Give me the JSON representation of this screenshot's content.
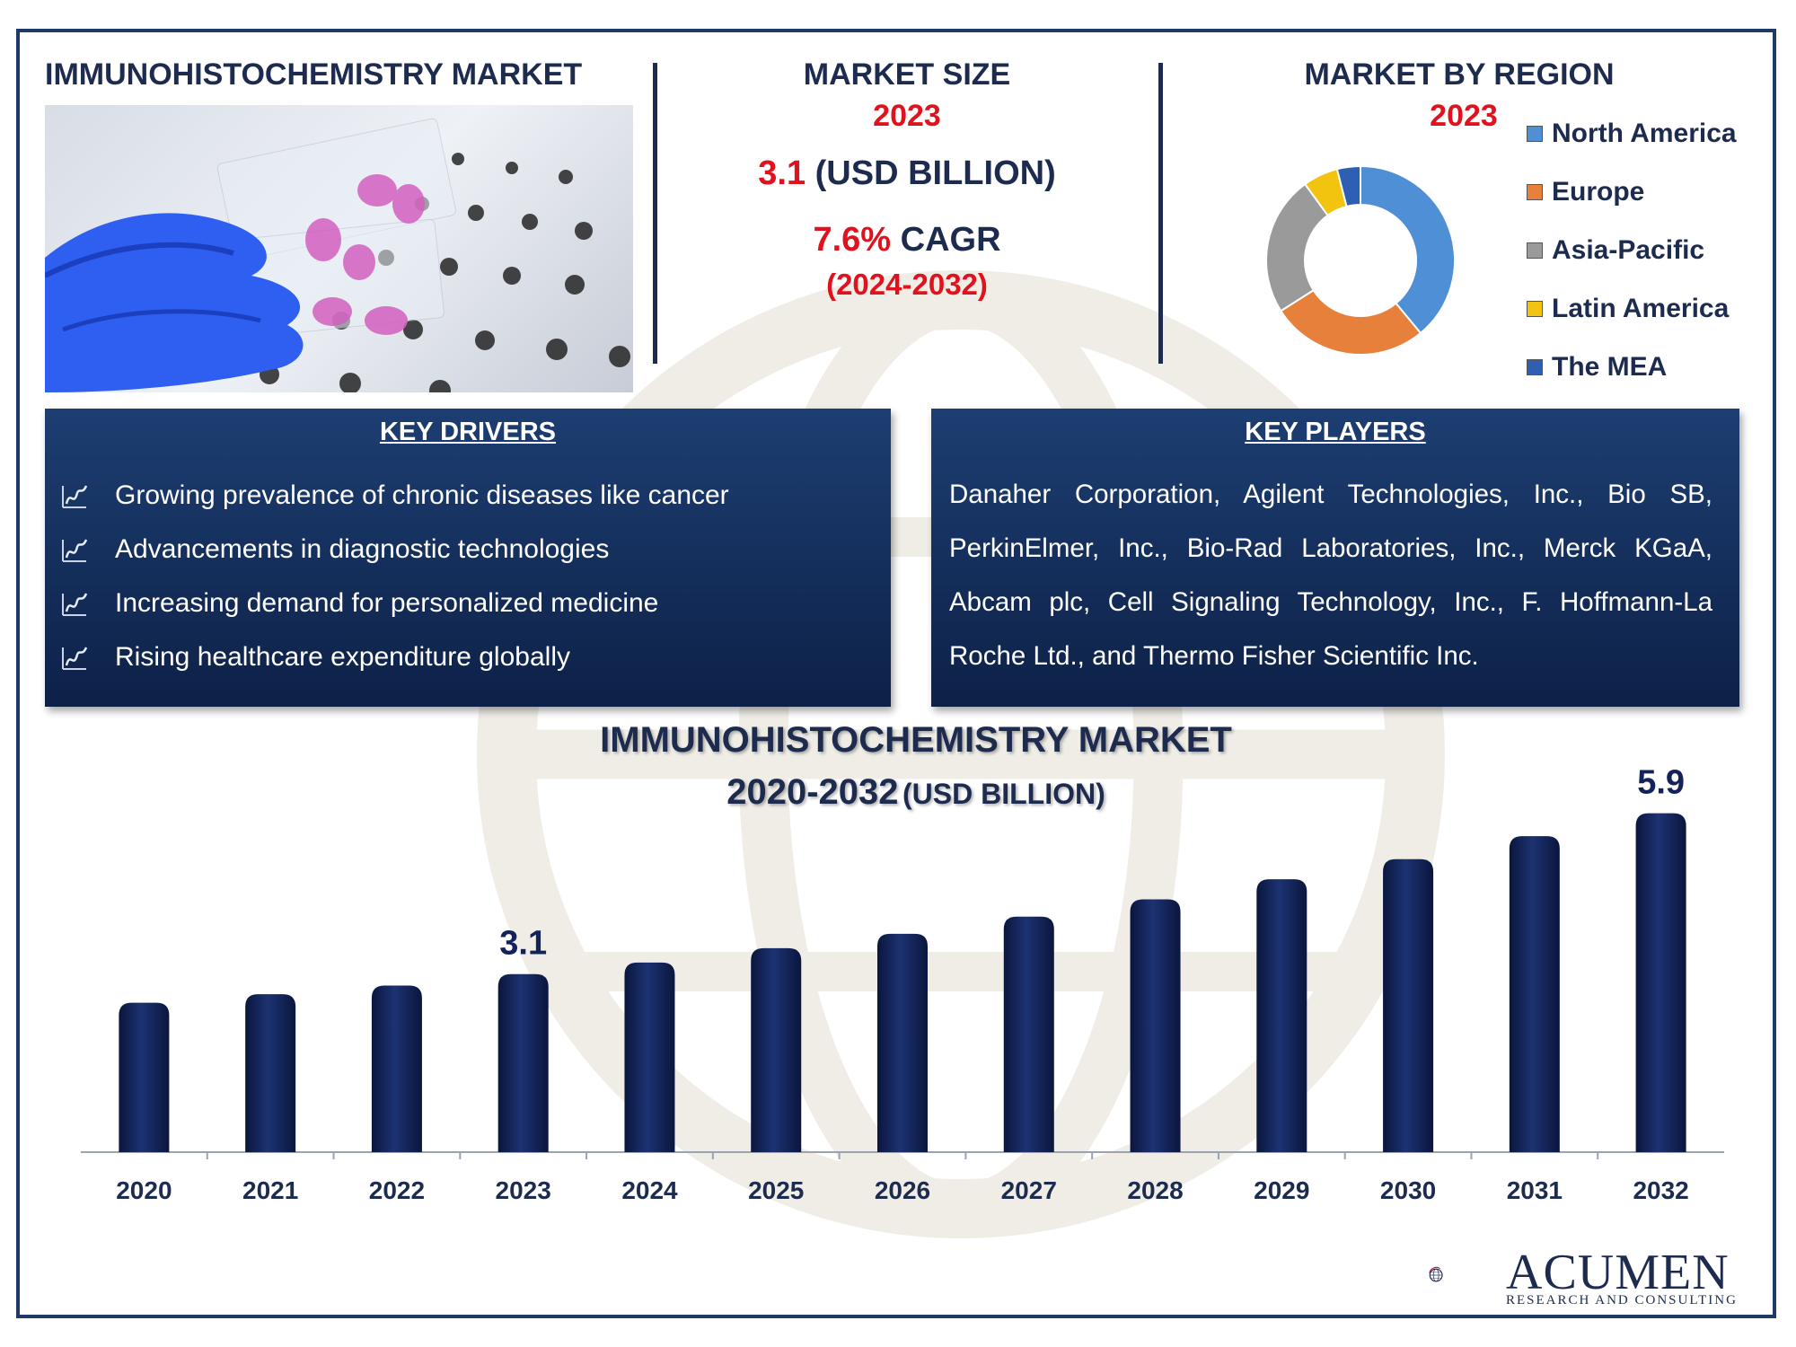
{
  "header": {
    "left_title": "IMMUNOHISTOCHEMISTRY MARKET",
    "center_title": "MARKET SIZE",
    "center_year": "2023",
    "size_value": "3.1",
    "size_unit": "(USD BILLION)",
    "cagr_value": "7.6%",
    "cagr_label": "CAGR",
    "cagr_period": "(2024-2032)",
    "right_title": "MARKET BY REGION",
    "right_year": "2023"
  },
  "region_chart": {
    "type": "pie",
    "style": "donut",
    "legend_position": "right",
    "labels": [
      "North America",
      "Europe",
      "Asia-Pacific",
      "Latin America",
      "The MEA"
    ],
    "values": [
      39,
      27,
      24,
      6,
      4
    ],
    "colors": [
      "#4f8fd6",
      "#e7803b",
      "#9a9a9a",
      "#f2c30f",
      "#2f5fb3"
    ]
  },
  "drivers": {
    "heading": "KEY DRIVERS",
    "items": [
      "Growing prevalence of chronic diseases like cancer",
      "Advancements in diagnostic technologies",
      "Increasing demand for personalized medicine",
      "Rising healthcare expenditure globally"
    ]
  },
  "players": {
    "heading": "KEY PLAYERS",
    "text": "Danaher Corporation, Agilent Technologies, Inc., Bio SB, PerkinElmer, Inc., Bio-Rad Laboratories, Inc., Merck KGaA, Abcam plc, Cell Signaling Technology, Inc., F. Hoffmann-La Roche Ltd., and Thermo Fisher Scientific Inc."
  },
  "chart_data": {
    "type": "bar",
    "title": "IMMUNOHISTOCHEMISTRY MARKET",
    "subtitle_main": "2020-2032",
    "subtitle_unit": "(USD BILLION)",
    "categories": [
      "2020",
      "2021",
      "2022",
      "2023",
      "2024",
      "2025",
      "2026",
      "2027",
      "2028",
      "2029",
      "2030",
      "2031",
      "2032"
    ],
    "values": [
      2.6,
      2.75,
      2.9,
      3.1,
      3.3,
      3.55,
      3.8,
      4.1,
      4.4,
      4.75,
      5.1,
      5.5,
      5.9
    ],
    "data_labels": [
      {
        "category": "2023",
        "text": "3.1"
      },
      {
        "category": "2032",
        "text": "5.9"
      }
    ],
    "ylim": [
      0,
      6.3
    ],
    "bar_color": "#13235a",
    "grid": false,
    "y_axis_visible": false
  },
  "brand": {
    "name": "ACUMEN",
    "tagline": "RESEARCH AND CONSULTING"
  }
}
